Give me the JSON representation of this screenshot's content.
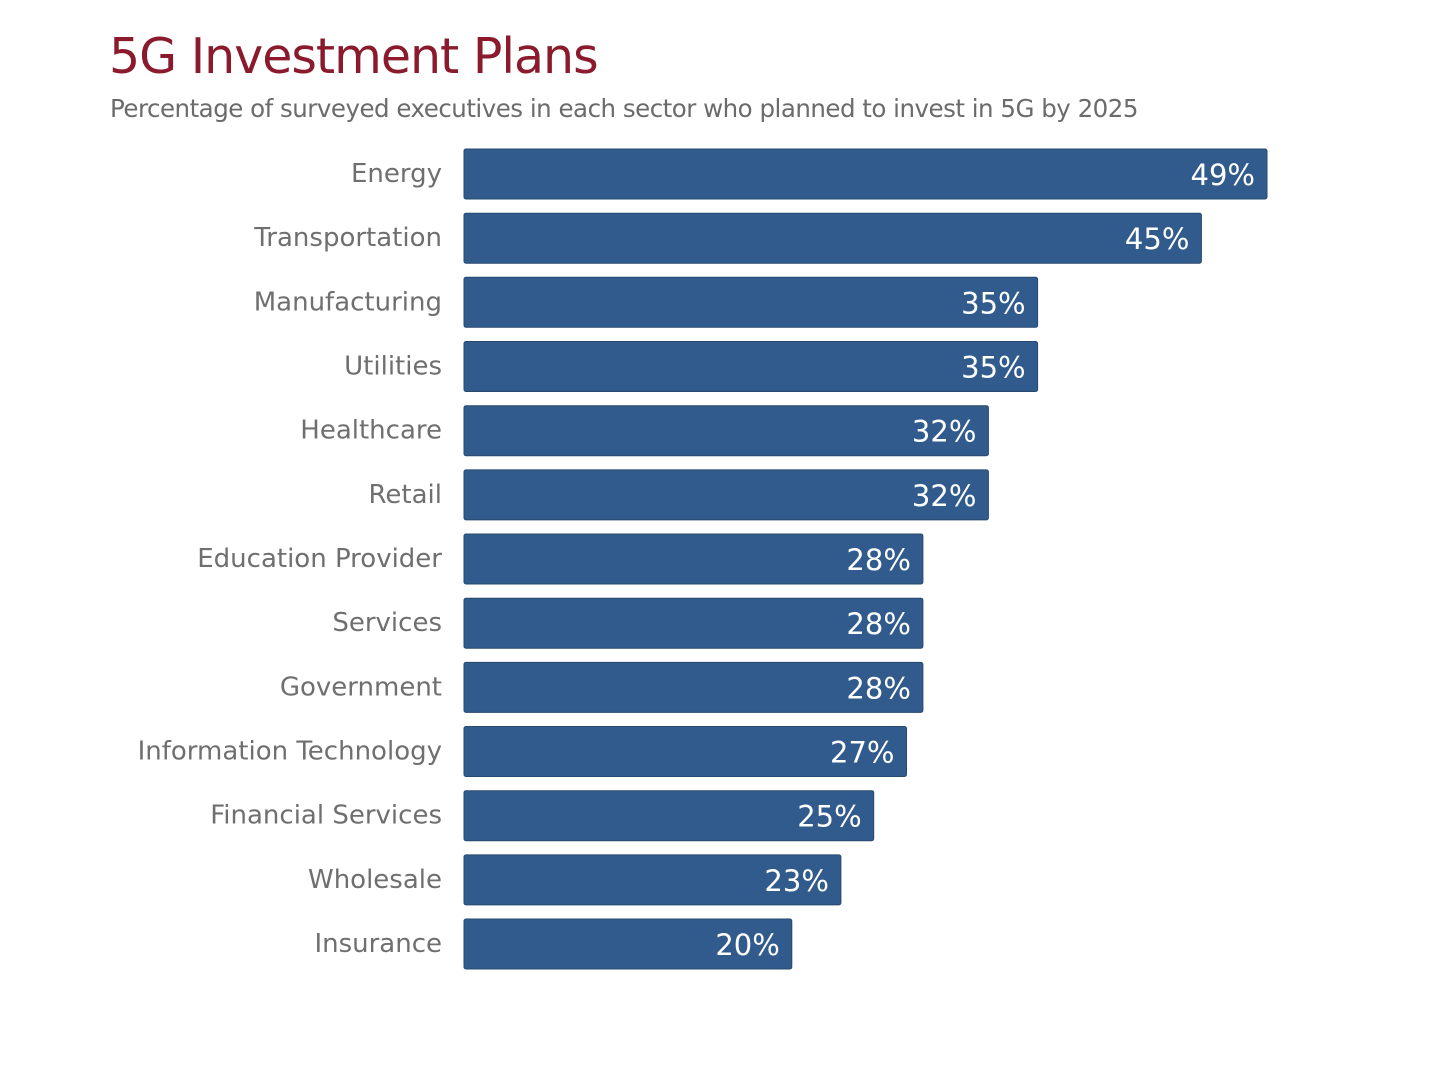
{
  "chart_data": {
    "type": "bar",
    "orientation": "horizontal",
    "title": "5G Investment Plans",
    "subtitle": "Percentage of surveyed executives in each sector who planned to invest in 5G by 2025",
    "categories": [
      "Energy",
      "Transportation",
      "Manufacturing",
      "Utilities",
      "Healthcare",
      "Retail",
      "Education Provider",
      "Services",
      "Government",
      "Information Technology",
      "Financial Services",
      "Wholesale",
      "Insurance"
    ],
    "values": [
      49,
      45,
      35,
      35,
      32,
      32,
      28,
      28,
      28,
      27,
      25,
      23,
      20
    ],
    "value_labels": [
      "49%",
      "45%",
      "35%",
      "35%",
      "32%",
      "32%",
      "28%",
      "28%",
      "28%",
      "27%",
      "25%",
      "23%",
      "20%"
    ],
    "xlim": [
      0,
      49
    ],
    "grid": false,
    "legend": "none",
    "bar_color": "#325b8d",
    "title_color": "#8a1a2c"
  }
}
